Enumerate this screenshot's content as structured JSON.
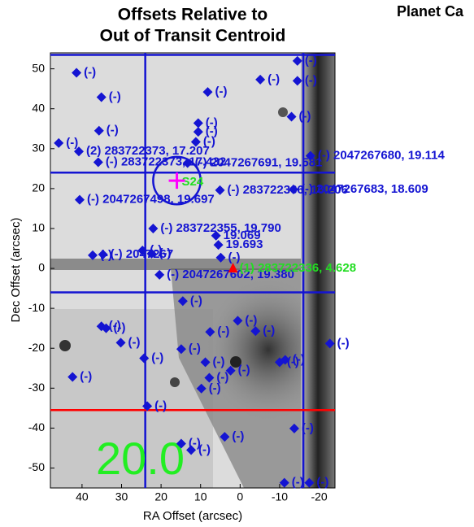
{
  "chart_data": {
    "type": "scatter",
    "title": [
      "Offsets Relative to",
      "Out of Transit Centroid"
    ],
    "header": "Planet Ca",
    "xlabel": "RA Offset (arcsec)",
    "ylabel": "Dec Offset (arcsec)",
    "xlim": [
      48,
      -24
    ],
    "ylim": [
      -55,
      54
    ],
    "xticks": [
      40,
      30,
      20,
      10,
      0,
      -10,
      -20
    ],
    "yticks": [
      50,
      40,
      30,
      20,
      10,
      0,
      -10,
      -20,
      -30,
      -40,
      -50
    ],
    "points": {
      "color": "#1414d2",
      "x": [
        41.4,
        35.1,
        35.7,
        45.9,
        40.8,
        35.9,
        40.6,
        13.3,
        10.6,
        10.6,
        11.2,
        8.2,
        -5.1,
        -14.5,
        -14.5,
        -13,
        -17.8,
        -13.5,
        5.1,
        22,
        37.3,
        34.7,
        24.7,
        22.4,
        6.1,
        5.5,
        4.9,
        20.4,
        14.5,
        35.1,
        33.9,
        30.2,
        24.3,
        14.9,
        7.6,
        0.6,
        -3.9,
        8.8,
        7.8,
        2.4,
        9.8,
        -10,
        -11.4,
        -22.7,
        42.4,
        23.5,
        -13.7,
        3.9,
        14.9,
        12.4,
        -11.2,
        -17.5
      ],
      "y": [
        49,
        42.9,
        34.5,
        31.4,
        29.3,
        26.6,
        17.2,
        26.4,
        36.4,
        34.2,
        31.7,
        44.2,
        47.3,
        52,
        47,
        38,
        28.2,
        19.8,
        19.6,
        10,
        3.3,
        3.5,
        4.5,
        3.7,
        8.2,
        5.9,
        2.7,
        -1.6,
        -8.2,
        -14.5,
        -15,
        -18.6,
        -22.5,
        -20.2,
        -15.9,
        -13.1,
        -15.7,
        -23.5,
        -27.4,
        -25.6,
        -30.1,
        -23.5,
        -22.9,
        -18.8,
        -27.2,
        -34.5,
        -40.1,
        -42.2,
        -43.9,
        -45.5,
        -53.7,
        -53.7
      ],
      "labels": [
        "(-)",
        "(-)",
        "(-)",
        "(-)",
        "(2) 283722373, 17.207",
        "(-) 283722373, 17.432",
        "(-) 2047267498, 19.697",
        "(-) 2047267691, 19.581",
        "(-)",
        "(-)",
        "(-)",
        "(-)",
        "(-)",
        "(-)",
        "(-)",
        "(-)",
        "(-) 2047267680, 19.114",
        "(-) 2047267683, 18.609",
        "(-) 283722366, 16.206",
        "(-) 283722355, 19.790",
        "(-)",
        "(-) 2047267",
        "(-)",
        "(-)",
        "19.069",
        "19.693",
        "(-)",
        "(-) 2047267602, 19.380",
        "(-)",
        "(-)",
        "(-)",
        "(-)",
        "(-)",
        "(-)",
        "(-)",
        "(-)",
        "(-)",
        "(-)",
        "(-)",
        "(-)",
        "(-)",
        "(-)",
        "(-)",
        "(-)",
        "(-)",
        "(-)",
        "(-)",
        "(-)",
        "(-)",
        "(-)",
        "(-)",
        "(-)"
      ]
    },
    "target": {
      "x": 1.8,
      "y": 0,
      "color": "#ff0000",
      "label": "(1) 283722336, 4.628",
      "label_color": "#22dd22"
    },
    "centroid": {
      "x": 16,
      "y": 22,
      "radius": 6,
      "color": "#ff00ff",
      "circle_color": "#1414d2",
      "label": "S24",
      "label_color": "#22dd22"
    },
    "hlines": {
      "y": [
        53.5,
        24,
        -6
      ],
      "color": "#1414d2"
    },
    "vlines": {
      "x": [
        24,
        -16
      ],
      "color": "#1414d2"
    },
    "red_line": {
      "y": -35.5,
      "color": "#ff0000"
    },
    "magnitude": {
      "text": "20.0",
      "color": "#22ee22"
    }
  }
}
